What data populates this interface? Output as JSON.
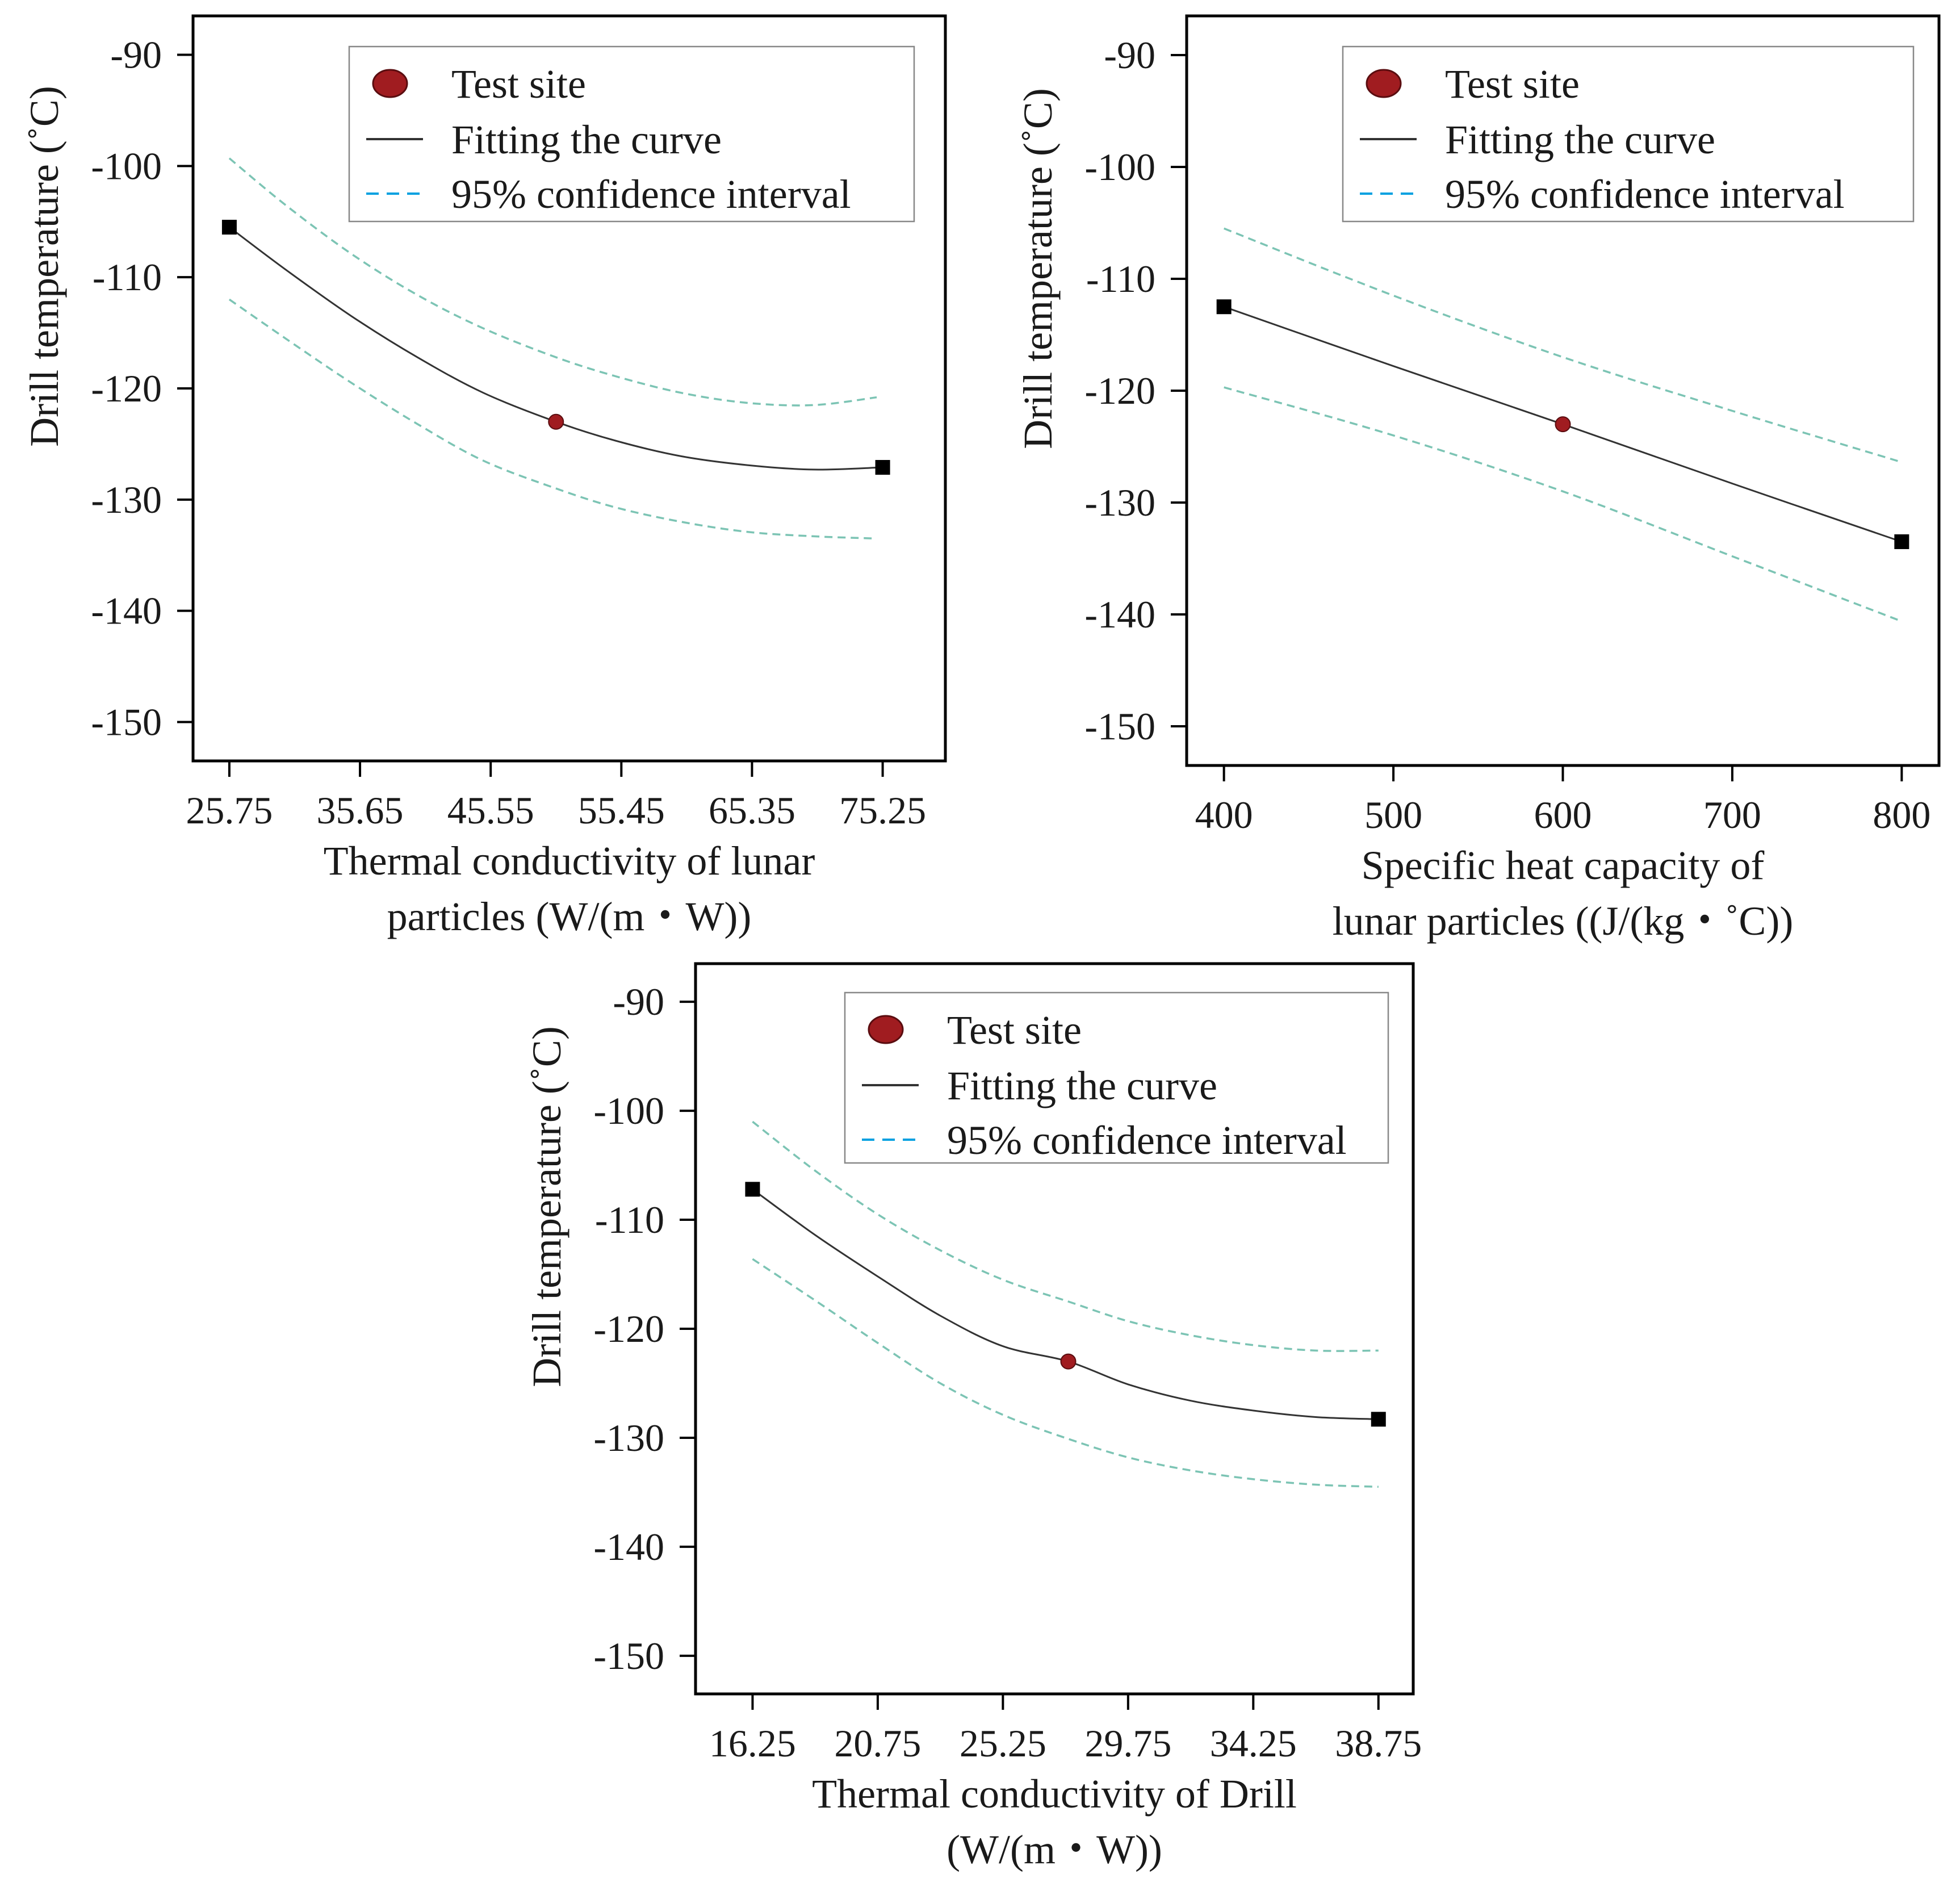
{
  "colors": {
    "fit_line": "#333333",
    "ci_line": "#7cc4b4",
    "legend_ci": "#00a0e0",
    "test_site": "#a01c20",
    "endpoint": "#000000"
  },
  "chart_data": [
    {
      "type": "line",
      "title": "",
      "xlabel_lines": [
        "Thermal conductivity of lunar",
        "particles (W/(m・W))"
      ],
      "ylabel": "Drill temperature (˚C)",
      "xlim": [
        23.0,
        80.0
      ],
      "ylim": [
        -153.5,
        -86.5
      ],
      "x_ticks": [
        25.75,
        35.65,
        45.55,
        55.45,
        65.35,
        75.25
      ],
      "x_tick_labels": [
        "25.75",
        "35.65",
        "45.55",
        "55.45",
        "65.35",
        "75.25"
      ],
      "y_ticks": [
        -90,
        -100,
        -110,
        -120,
        -130,
        -140,
        -150
      ],
      "y_tick_labels": [
        "-90",
        "-100",
        "-110",
        "-120",
        "-130",
        "-140",
        "-150"
      ],
      "legend": {
        "position": "top-right",
        "entries": [
          "Test site",
          "Fitting the curve",
          "95% confidence interval"
        ]
      },
      "grid": false,
      "series": [
        {
          "role": "fit",
          "x": [
            25.75,
            30,
            35,
            40,
            45,
            50.5,
            55,
            60,
            65,
            70,
            75.25
          ],
          "y": [
            -105.5,
            -109.3,
            -113.5,
            -117.2,
            -120.4,
            -123.0,
            -124.7,
            -126.1,
            -126.9,
            -127.3,
            -127.1
          ]
        },
        {
          "role": "ci_upper",
          "x": [
            25.75,
            30,
            35,
            40,
            45,
            50.5,
            55,
            60,
            65,
            70,
            74.8
          ],
          "y": [
            -99.3,
            -103.5,
            -107.9,
            -111.6,
            -114.6,
            -117.2,
            -118.9,
            -120.4,
            -121.3,
            -121.5,
            -120.8
          ]
        },
        {
          "role": "ci_lower",
          "x": [
            25.75,
            30,
            35,
            40,
            45,
            50.5,
            55,
            60,
            65,
            70,
            74.8
          ],
          "y": [
            -112.0,
            -115.5,
            -119.5,
            -123.2,
            -126.5,
            -129.0,
            -130.7,
            -132.0,
            -132.9,
            -133.3,
            -133.5
          ]
        }
      ],
      "endpoints": [
        {
          "x": 25.75,
          "y": -105.5
        },
        {
          "x": 75.25,
          "y": -127.1
        }
      ],
      "test_site": {
        "x": 50.5,
        "y": -123.0
      }
    },
    {
      "type": "line",
      "title": "",
      "xlabel_lines": [
        "Specific heat capacity of",
        "lunar particles ((J/(kg・˚C))"
      ],
      "ylabel": "Drill temperature (˚C)",
      "xlim": [
        378,
        822
      ],
      "ylim": [
        -153.5,
        -86.5
      ],
      "x_ticks": [
        400,
        500,
        600,
        700,
        800
      ],
      "x_tick_labels": [
        "400",
        "500",
        "600",
        "700",
        "800"
      ],
      "y_ticks": [
        -90,
        -100,
        -110,
        -120,
        -130,
        -140,
        -150
      ],
      "y_tick_labels": [
        "-90",
        "-100",
        "-110",
        "-120",
        "-130",
        "-140",
        "-150"
      ],
      "legend": {
        "position": "top-right",
        "entries": [
          "Test site",
          "Fitting the curve",
          "95% confidence interval"
        ]
      },
      "grid": false,
      "series": [
        {
          "role": "fit",
          "x": [
            400,
            500,
            600,
            700,
            800
          ],
          "y": [
            -112.5,
            -117.8,
            -123.0,
            -128.3,
            -133.5
          ]
        },
        {
          "role": "ci_upper",
          "x": [
            400,
            500,
            600,
            700,
            798
          ],
          "y": [
            -105.5,
            -111.5,
            -117.0,
            -121.8,
            -126.3
          ]
        },
        {
          "role": "ci_lower",
          "x": [
            400,
            500,
            600,
            700,
            798
          ],
          "y": [
            -119.7,
            -124.0,
            -129.0,
            -134.8,
            -140.5
          ]
        }
      ],
      "endpoints": [
        {
          "x": 400,
          "y": -112.5
        },
        {
          "x": 800,
          "y": -133.5
        }
      ],
      "test_site": {
        "x": 600,
        "y": -123.0
      }
    },
    {
      "type": "line",
      "title": "",
      "xlabel_lines": [
        "Thermal conductivity of Drill",
        "(W/(m・W))"
      ],
      "ylabel": "Drill temperature (˚C)",
      "xlim": [
        14.2,
        40.0
      ],
      "ylim": [
        -153.5,
        -86.5
      ],
      "x_ticks": [
        16.25,
        20.75,
        25.25,
        29.75,
        34.25,
        38.75
      ],
      "x_tick_labels": [
        "16.25",
        "20.75",
        "25.25",
        "29.75",
        "34.25",
        "38.75"
      ],
      "y_ticks": [
        -90,
        -100,
        -110,
        -120,
        -130,
        -140,
        -150
      ],
      "y_tick_labels": [
        "-90",
        "-100",
        "-110",
        "-120",
        "-130",
        "-140",
        "-150"
      ],
      "legend": {
        "position": "top-right",
        "entries": [
          "Test site",
          "Fitting the curve",
          "95% confidence interval"
        ]
      },
      "grid": false,
      "series": [
        {
          "role": "fit",
          "x": [
            16.25,
            18.5,
            20.75,
            23,
            25.25,
            27.6,
            29.75,
            32,
            34.25,
            36.5,
            38.75
          ],
          "y": [
            -107.2,
            -111.4,
            -115.2,
            -118.8,
            -121.6,
            -123.0,
            -125.1,
            -126.6,
            -127.5,
            -128.1,
            -128.3
          ]
        },
        {
          "role": "ci_upper",
          "x": [
            16.25,
            18.5,
            20.75,
            23,
            25.25,
            27.6,
            29.75,
            32,
            34.25,
            36.5,
            38.75
          ],
          "y": [
            -101.0,
            -105.5,
            -109.5,
            -112.8,
            -115.5,
            -117.5,
            -119.3,
            -120.6,
            -121.5,
            -122.0,
            -122.0
          ]
        },
        {
          "role": "ci_lower",
          "x": [
            16.25,
            18.5,
            20.75,
            23,
            25.25,
            27.6,
            29.75,
            32,
            34.25,
            36.5,
            38.75
          ],
          "y": [
            -113.6,
            -117.4,
            -121.3,
            -125.0,
            -127.9,
            -130.1,
            -131.8,
            -133.0,
            -133.8,
            -134.3,
            -134.5
          ]
        }
      ],
      "endpoints": [
        {
          "x": 16.25,
          "y": -107.2
        },
        {
          "x": 38.75,
          "y": -128.3
        }
      ],
      "test_site": {
        "x": 27.6,
        "y": -123.0
      }
    }
  ]
}
